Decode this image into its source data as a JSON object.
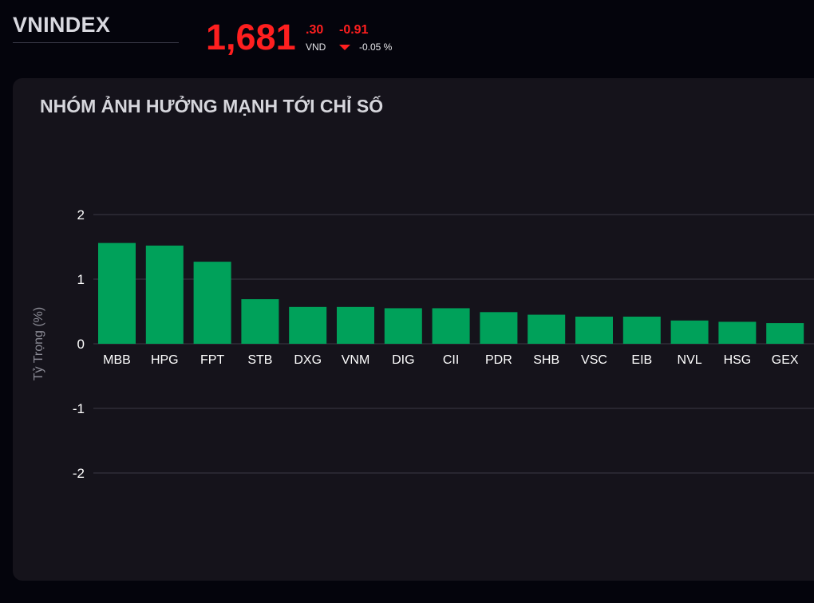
{
  "header": {
    "index_name": "VNINDEX",
    "price_int": "1,681",
    "price_dec": ".30",
    "price_unit": "VND",
    "change": "-0.91",
    "change_pct": "-0.05 %",
    "change_direction": "down"
  },
  "card": {
    "title": "NHÓM ẢNH HƯỞNG MẠNH TỚI CHỈ SỐ"
  },
  "colors": {
    "negative": "#ff1f1f",
    "bar": "#00a15a",
    "grid": "#3a3844",
    "tick_text": "#ffffff",
    "axis_label": "#8a8a94"
  },
  "chart_data": {
    "type": "bar",
    "title": "NHÓM ẢNH HƯỞNG MẠNH TỚI CHỈ SỐ",
    "xlabel": "",
    "ylabel": "Tỷ Trọng (%)",
    "ylim": [
      -2,
      2
    ],
    "yticks": [
      2,
      1,
      0,
      -1,
      -2
    ],
    "grid": true,
    "legend": "none",
    "categories": [
      "MBB",
      "HPG",
      "FPT",
      "STB",
      "DXG",
      "VNM",
      "DIG",
      "CII",
      "PDR",
      "SHB",
      "VSC",
      "EIB",
      "NVL",
      "HSG",
      "GEX"
    ],
    "values": [
      1.56,
      1.52,
      1.27,
      0.69,
      0.57,
      0.57,
      0.55,
      0.55,
      0.49,
      0.45,
      0.42,
      0.42,
      0.36,
      0.34,
      0.32
    ]
  }
}
